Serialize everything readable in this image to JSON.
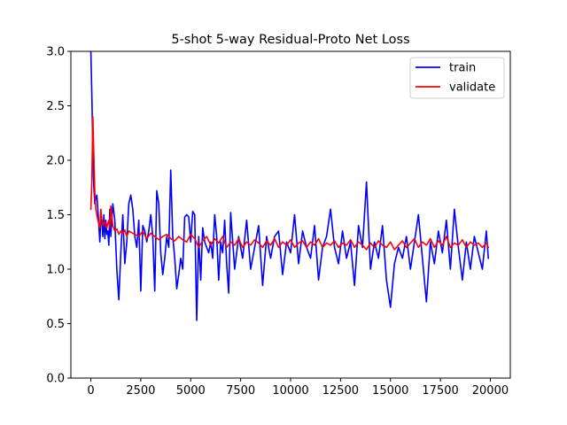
{
  "chart_data": {
    "type": "line",
    "title": "5-shot 5-way Residual-Proto Net Loss",
    "xlabel": "",
    "ylabel": "",
    "xlim": [
      -1000,
      21000
    ],
    "ylim": [
      0.0,
      3.0
    ],
    "xticks": [
      0,
      2500,
      5000,
      7500,
      10000,
      12500,
      15000,
      17500,
      20000
    ],
    "xtick_labels": [
      "0",
      "2500",
      "5000",
      "7500",
      "10000",
      "12500",
      "15000",
      "17500",
      "20000"
    ],
    "yticks": [
      0.0,
      0.5,
      1.0,
      1.5,
      2.0,
      2.5,
      3.0
    ],
    "ytick_labels": [
      "0.0",
      "0.5",
      "1.0",
      "1.5",
      "2.0",
      "2.5",
      "3.0"
    ],
    "grid": false,
    "legend_position": "top-right",
    "series": [
      {
        "name": "train",
        "color": "#0000ff",
        "x": [
          0,
          50,
          100,
          150,
          200,
          250,
          300,
          350,
          400,
          450,
          500,
          550,
          600,
          650,
          700,
          750,
          800,
          850,
          900,
          950,
          1000,
          1100,
          1200,
          1300,
          1400,
          1500,
          1600,
          1700,
          1800,
          1900,
          2000,
          2100,
          2200,
          2300,
          2400,
          2500,
          2600,
          2700,
          2800,
          2900,
          3000,
          3100,
          3200,
          3300,
          3400,
          3500,
          3600,
          3700,
          3800,
          3900,
          4000,
          4100,
          4200,
          4300,
          4400,
          4500,
          4600,
          4700,
          4800,
          4900,
          5000,
          5100,
          5200,
          5300,
          5400,
          5500,
          5600,
          5700,
          5800,
          5900,
          6000,
          6100,
          6200,
          6300,
          6400,
          6500,
          6600,
          6700,
          6800,
          6900,
          7000,
          7200,
          7400,
          7600,
          7800,
          8000,
          8200,
          8400,
          8600,
          8800,
          9000,
          9200,
          9400,
          9600,
          9800,
          10000,
          10200,
          10400,
          10600,
          10800,
          11000,
          11200,
          11400,
          11600,
          11800,
          12000,
          12200,
          12400,
          12600,
          12800,
          13000,
          13200,
          13400,
          13600,
          13800,
          14000,
          14200,
          14400,
          14600,
          14800,
          15000,
          15200,
          15400,
          15600,
          15800,
          16000,
          16200,
          16400,
          16600,
          16800,
          17000,
          17200,
          17400,
          17600,
          17800,
          18000,
          18200,
          18400,
          18600,
          18800,
          19000,
          19200,
          19400,
          19600,
          19800,
          19900
        ],
        "values": [
          3.0,
          2.6,
          2.1,
          1.75,
          1.6,
          1.65,
          1.68,
          1.55,
          1.4,
          1.25,
          1.48,
          1.45,
          1.3,
          1.5,
          1.28,
          1.45,
          1.32,
          1.35,
          1.22,
          1.55,
          1.3,
          1.6,
          1.45,
          1.0,
          0.72,
          1.15,
          1.5,
          1.05,
          1.25,
          1.6,
          1.68,
          1.55,
          1.3,
          1.2,
          1.45,
          0.8,
          1.4,
          1.35,
          1.25,
          1.35,
          1.5,
          1.3,
          0.8,
          1.72,
          1.6,
          1.15,
          0.95,
          1.1,
          1.3,
          1.2,
          1.91,
          1.3,
          1.1,
          0.82,
          0.95,
          1.1,
          1.0,
          1.48,
          1.5,
          1.48,
          1.25,
          1.53,
          1.5,
          0.53,
          1.3,
          0.9,
          1.38,
          1.25,
          1.2,
          1.15,
          1.25,
          1.1,
          1.5,
          1.3,
          0.9,
          1.25,
          1.15,
          1.45,
          1.05,
          0.78,
          1.52,
          1.0,
          1.3,
          1.1,
          1.45,
          1.0,
          1.2,
          1.4,
          0.85,
          1.3,
          1.1,
          1.3,
          1.35,
          0.95,
          1.25,
          1.15,
          1.5,
          1.05,
          1.35,
          1.2,
          1.1,
          1.4,
          0.9,
          1.2,
          1.3,
          1.55,
          1.2,
          1.05,
          1.35,
          1.1,
          1.25,
          0.85,
          1.4,
          1.2,
          1.8,
          1.0,
          1.25,
          1.1,
          1.4,
          0.9,
          0.65,
          1.05,
          1.2,
          1.1,
          1.3,
          1.0,
          1.25,
          1.5,
          1.1,
          0.7,
          1.25,
          1.05,
          1.35,
          1.15,
          1.45,
          1.0,
          1.55,
          1.2,
          0.9,
          1.25,
          1.0,
          1.3,
          1.15,
          1.0,
          1.35,
          1.1
        ],
        "_note": ""
      },
      {
        "name": "validate",
        "color": "#ff0000",
        "x": [
          0,
          50,
          100,
          150,
          200,
          250,
          300,
          350,
          400,
          450,
          500,
          550,
          600,
          650,
          700,
          750,
          800,
          850,
          900,
          950,
          1000,
          1100,
          1200,
          1300,
          1400,
          1500,
          1600,
          1700,
          1800,
          1900,
          2000,
          2200,
          2400,
          2600,
          2800,
          3000,
          3200,
          3400,
          3600,
          3800,
          4000,
          4200,
          4400,
          4600,
          4800,
          5000,
          5200,
          5400,
          5600,
          5800,
          6000,
          6200,
          6400,
          6600,
          6800,
          7000,
          7200,
          7400,
          7600,
          7800,
          8000,
          8200,
          8400,
          8600,
          8800,
          9000,
          9200,
          9400,
          9600,
          9800,
          10000,
          10200,
          10400,
          10600,
          10800,
          11000,
          11200,
          11400,
          11600,
          11800,
          12000,
          12200,
          12400,
          12600,
          12800,
          13000,
          13200,
          13400,
          13600,
          13800,
          14000,
          14200,
          14400,
          14600,
          14800,
          15000,
          15200,
          15400,
          15600,
          15800,
          16000,
          16200,
          16400,
          16600,
          16800,
          17000,
          17200,
          17400,
          17600,
          17800,
          18000,
          18200,
          18400,
          18600,
          18800,
          19000,
          19200,
          19400,
          19600,
          19800,
          19900
        ],
        "values": [
          1.55,
          1.8,
          2.4,
          2.05,
          1.7,
          1.55,
          1.5,
          1.45,
          1.42,
          1.38,
          1.55,
          1.45,
          1.4,
          1.42,
          1.44,
          1.4,
          1.38,
          1.42,
          1.45,
          1.38,
          1.58,
          1.4,
          1.35,
          1.37,
          1.32,
          1.35,
          1.33,
          1.36,
          1.3,
          1.35,
          1.34,
          1.32,
          1.3,
          1.35,
          1.28,
          1.33,
          1.3,
          1.27,
          1.3,
          1.32,
          1.28,
          1.26,
          1.3,
          1.27,
          1.25,
          1.32,
          1.28,
          1.2,
          1.26,
          1.3,
          1.22,
          1.28,
          1.24,
          1.3,
          1.2,
          1.25,
          1.22,
          1.28,
          1.2,
          1.25,
          1.22,
          1.27,
          1.24,
          1.2,
          1.26,
          1.22,
          1.28,
          1.2,
          1.25,
          1.22,
          1.27,
          1.2,
          1.24,
          1.26,
          1.2,
          1.25,
          1.22,
          1.28,
          1.2,
          1.24,
          1.22,
          1.26,
          1.2,
          1.24,
          1.22,
          1.27,
          1.2,
          1.25,
          1.22,
          1.18,
          1.24,
          1.2,
          1.26,
          1.22,
          1.2,
          1.25,
          1.18,
          1.22,
          1.26,
          1.2,
          1.24,
          1.28,
          1.2,
          1.25,
          1.22,
          1.28,
          1.2,
          1.26,
          1.22,
          1.3,
          1.2,
          1.24,
          1.22,
          1.27,
          1.2,
          1.25,
          1.22,
          1.24,
          1.2,
          1.24,
          1.2
        ]
      }
    ]
  }
}
